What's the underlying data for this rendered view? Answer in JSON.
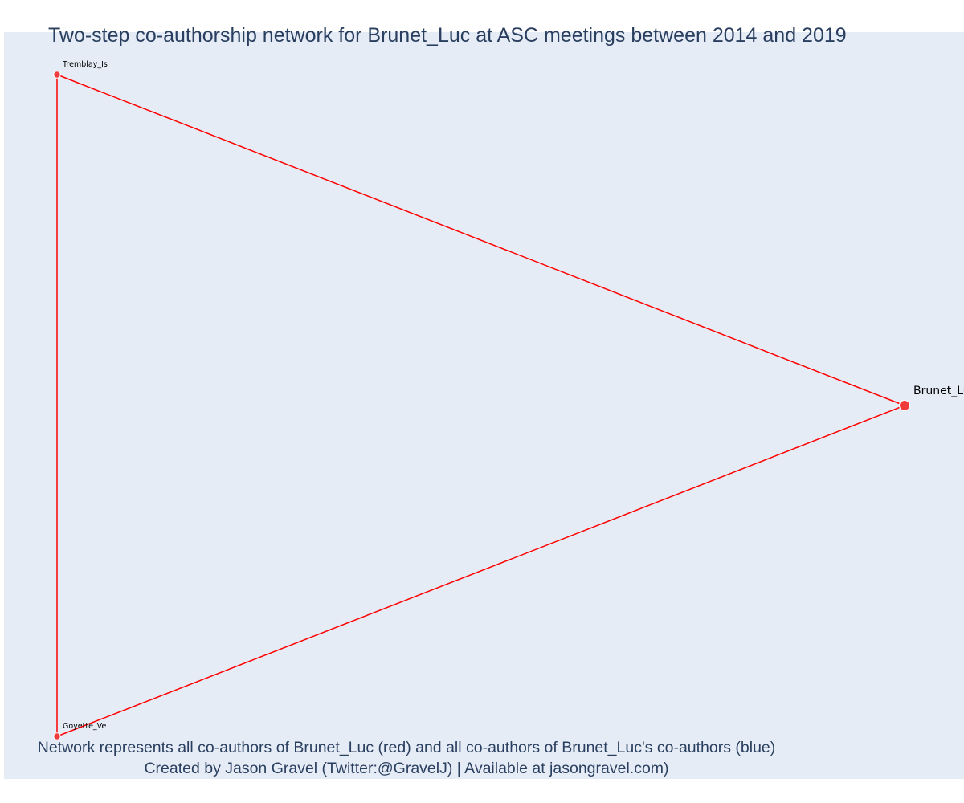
{
  "chart_data": {
    "type": "network",
    "title": "Two-step co-authorship network for Brunet_Luc at ASC meetings between 2014 and 2019",
    "caption_lines": [
      "Network represents all co-authors of Brunet_Luc (red) and all co-authors of Brunet_Luc's co-authors (blue)",
      "Created by Jason Gravel (Twitter:@GravelJ) | Available at jasongravel.com)"
    ],
    "nodes": [
      {
        "id": "Brunet_Luc",
        "label": "Brunet_Luc",
        "color": "#ef3b3b",
        "role": "focal"
      },
      {
        "id": "Tremblay_Is",
        "label": "Tremblay_Is",
        "color": "#ef3b3b",
        "role": "co-author"
      },
      {
        "id": "Goyette_Ve",
        "label": "Goyette_Ve",
        "color": "#ef3b3b",
        "role": "co-author"
      }
    ],
    "edges": [
      {
        "source": "Brunet_Luc",
        "target": "Tremblay_Is"
      },
      {
        "source": "Brunet_Luc",
        "target": "Goyette_Ve"
      },
      {
        "source": "Tremblay_Is",
        "target": "Goyette_Ve"
      }
    ],
    "colors": {
      "edge": "#ff0000",
      "node": "#ef3b3b",
      "background": "#e5ecf6",
      "text": "#2a3f5f"
    }
  }
}
